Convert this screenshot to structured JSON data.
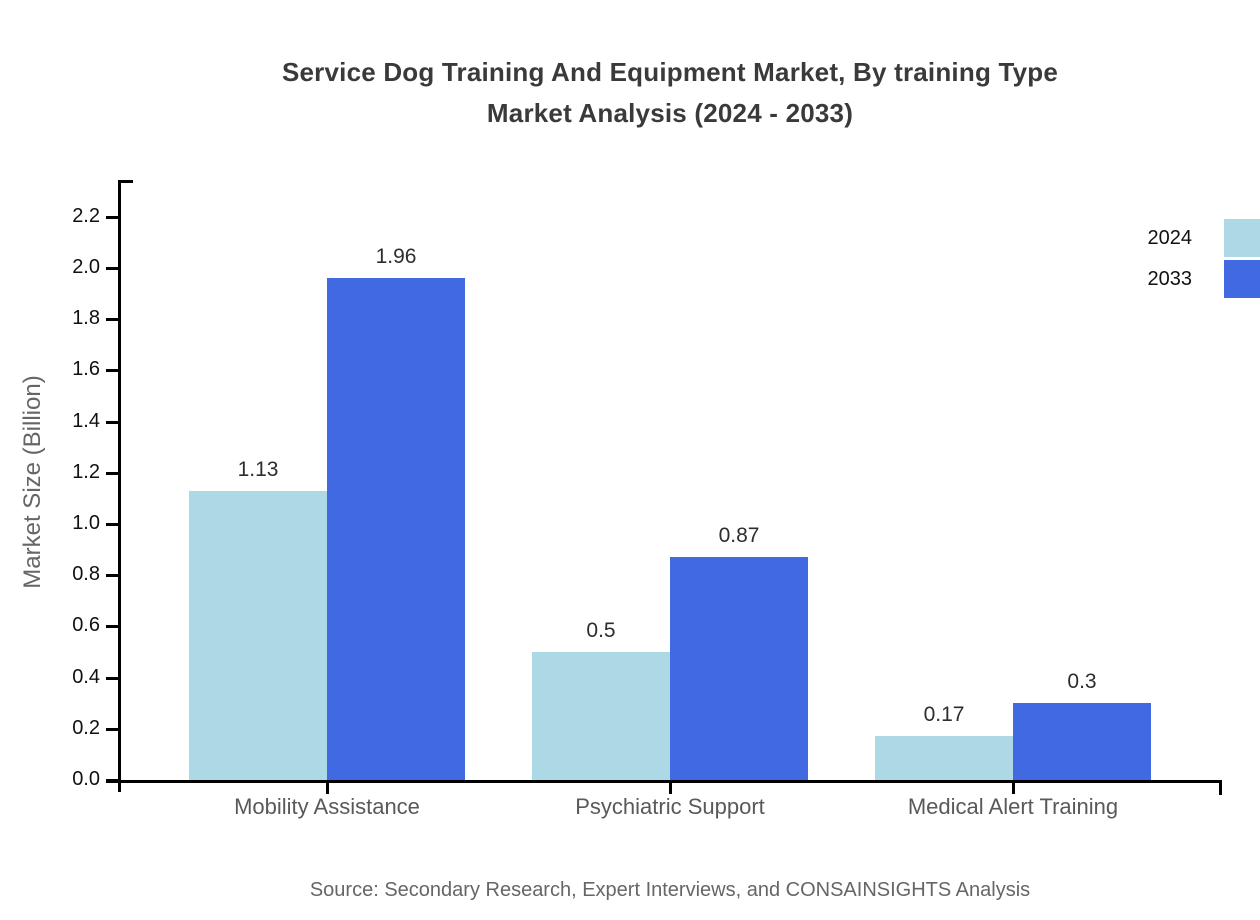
{
  "title": {
    "line1": "Service Dog Training And Equipment Market, By training Type",
    "line2": "Market Analysis (2024 - 2033)"
  },
  "chart_data": {
    "type": "bar",
    "categories": [
      "Mobility Assistance",
      "Psychiatric Support",
      "Medical Alert Training"
    ],
    "series": [
      {
        "name": "2024",
        "color": "#ADD8E6",
        "values": [
          1.13,
          0.5,
          0.17
        ]
      },
      {
        "name": "2033",
        "color": "#4169E1",
        "values": [
          1.96,
          0.87,
          0.3
        ]
      }
    ],
    "ylabel": "Market Size (Billion)",
    "ytick_labels": [
      "0.0",
      "0.2",
      "0.4",
      "0.6",
      "0.8",
      "1.0",
      "1.2",
      "1.4",
      "1.6",
      "1.8",
      "2.0",
      "2.2"
    ],
    "ylim": [
      0,
      2.35
    ],
    "grid": false,
    "legend_position": "top-right",
    "value_labels_shown": true
  },
  "source": "Source: Secondary Research, Expert Interviews, and CONSAINSIGHTS Analysis"
}
